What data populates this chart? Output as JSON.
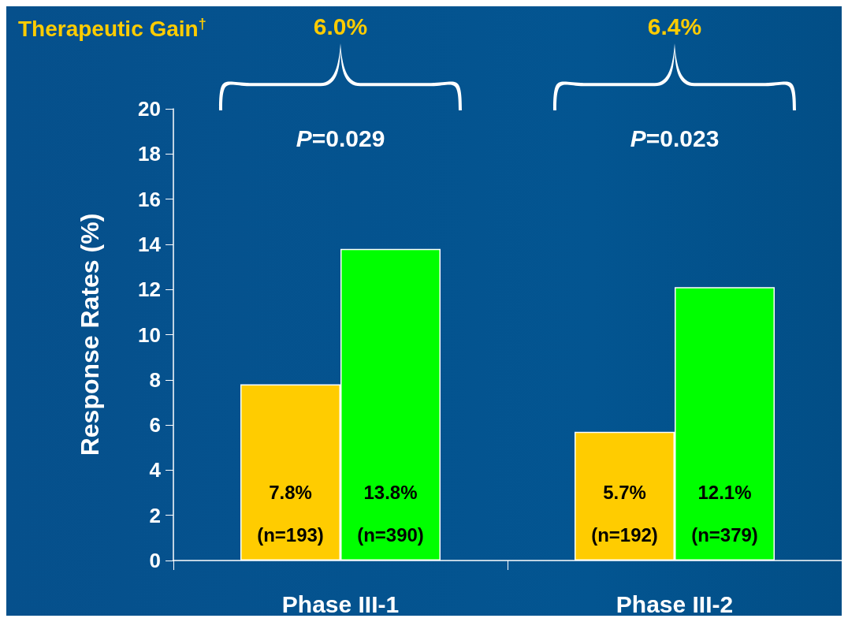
{
  "chart_data": {
    "type": "bar",
    "title": "Therapeutic Gain$^{†}$",
    "ylabel": "Response Rates (%)",
    "categories": [
      "Phase III-1",
      "Phase III-2"
    ],
    "series": [
      {
        "color": "#ffcc00",
        "values": [
          7.8,
          5.7
        ],
        "value_labels": [
          "7.8%\n(n=193)",
          "5.7%\n(n=192)"
        ]
      },
      {
        "color": "#00ff00",
        "values": [
          13.8,
          12.1
        ],
        "value_labels": [
          "13.8%\n(n=390)",
          "12.1%\n(n=379)"
        ]
      }
    ],
    "ylim": [
      0,
      20
    ],
    "yticks": [
      0,
      2,
      4,
      6,
      8,
      10,
      12,
      14,
      16,
      18,
      20
    ],
    "grid": false,
    "annotations": [
      "6.0%",
      "P=0.029",
      "6.4%",
      "P=0.023"
    ]
  }
}
